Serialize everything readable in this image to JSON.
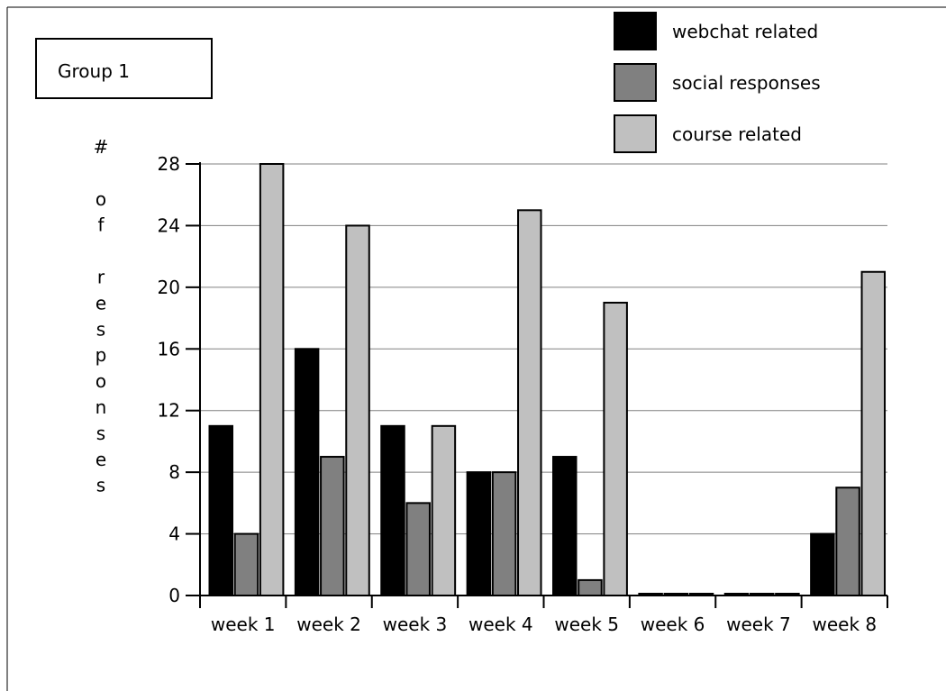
{
  "chart_data": {
    "type": "bar",
    "label_box": "Group 1",
    "ylabel": "# of responses",
    "categories": [
      "week 1",
      "week 2",
      "week 3",
      "week 4",
      "week 5",
      "week 6",
      "week 7",
      "week 8"
    ],
    "series": [
      {
        "name": "webchat related",
        "color": "#000000",
        "values": [
          11,
          16,
          11,
          8,
          9,
          0,
          0,
          4
        ]
      },
      {
        "name": "social responses",
        "color": "#808080",
        "values": [
          4,
          9,
          6,
          8,
          1,
          0,
          0,
          7
        ]
      },
      {
        "name": "course related",
        "color": "#c0c0c0",
        "values": [
          28,
          24,
          11,
          25,
          19,
          0,
          0,
          21
        ]
      }
    ],
    "yticks": [
      0,
      4,
      8,
      12,
      16,
      20,
      24,
      28
    ],
    "ylim": [
      0,
      28
    ],
    "grid": true,
    "legend_position": "top-right"
  }
}
